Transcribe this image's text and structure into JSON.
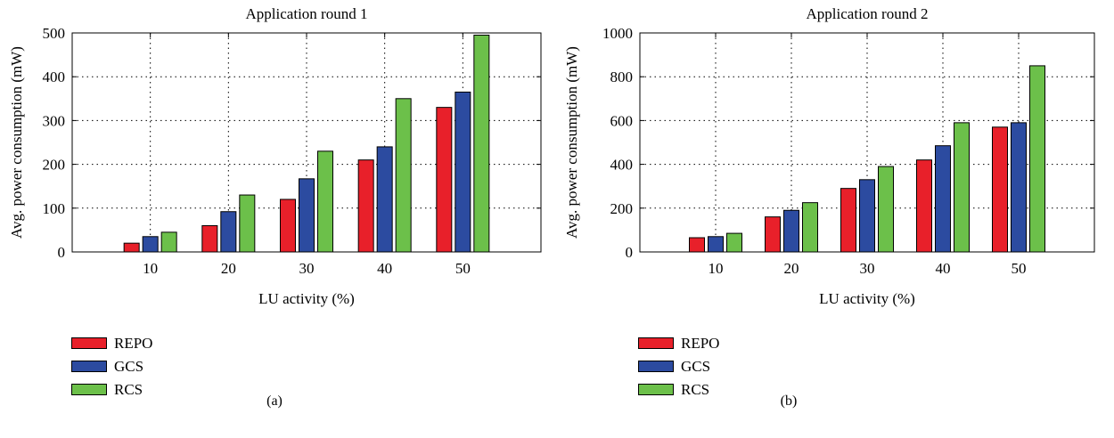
{
  "chart_data": [
    {
      "type": "bar",
      "title": "Application round 1",
      "xlabel": "LU activity (%)",
      "ylabel": "Avg. power consumption (mW)",
      "categories": [
        "10",
        "20",
        "30",
        "40",
        "50"
      ],
      "ylim": [
        0,
        500
      ],
      "yticks": [
        "0",
        "100",
        "200",
        "300",
        "400",
        "500"
      ],
      "grid": true,
      "legend_position": "below",
      "series": [
        {
          "name": "REPO",
          "color": "#e8202a",
          "values": [
            20,
            60,
            120,
            210,
            330
          ]
        },
        {
          "name": "GCS",
          "color": "#2c4ba0",
          "values": [
            35,
            92,
            167,
            240,
            365
          ]
        },
        {
          "name": "RCS",
          "color": "#6cc04a",
          "values": [
            45,
            130,
            230,
            350,
            495
          ]
        }
      ],
      "caption": "(a)"
    },
    {
      "type": "bar",
      "title": "Application round 2",
      "xlabel": "LU activity (%)",
      "ylabel": "Avg. power consumption (mW)",
      "categories": [
        "10",
        "20",
        "30",
        "40",
        "50"
      ],
      "ylim": [
        0,
        1000
      ],
      "yticks": [
        "0",
        "200",
        "400",
        "600",
        "800",
        "1000"
      ],
      "grid": true,
      "legend_position": "below",
      "series": [
        {
          "name": "REPO",
          "color": "#e8202a",
          "values": [
            65,
            160,
            290,
            420,
            570
          ]
        },
        {
          "name": "GCS",
          "color": "#2c4ba0",
          "values": [
            70,
            190,
            330,
            485,
            590
          ]
        },
        {
          "name": "RCS",
          "color": "#6cc04a",
          "values": [
            85,
            225,
            390,
            590,
            850
          ]
        }
      ],
      "caption": "(b)"
    }
  ]
}
